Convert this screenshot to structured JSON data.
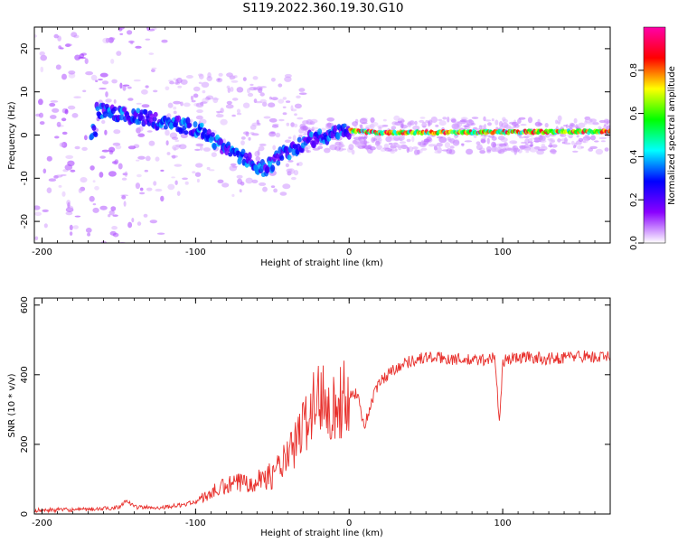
{
  "title": "S119.2022.360.19.30.G10",
  "colors": {
    "trace": "#e8302c",
    "frame": "#000000"
  },
  "chart_data": [
    {
      "type": "heatmap",
      "xlabel": "Height of straight line (km)",
      "ylabel": "Frequency (Hz)",
      "xlim": [
        -205,
        170
      ],
      "ylim": [
        -25,
        25
      ],
      "x_ticks": [
        -200,
        -100,
        0,
        100
      ],
      "y_ticks": [
        -20,
        -10,
        0,
        10,
        20
      ],
      "colorbar": {
        "label": "Normalized spectral amplitude",
        "range": [
          0,
          1
        ],
        "ticks": [
          0.0,
          0.2,
          0.4,
          0.6,
          0.8
        ],
        "colormap": [
          "#ffffff",
          "#8a00ff",
          "#0000ff",
          "#00ffff",
          "#00ff00",
          "#ffff00",
          "#ff0000",
          "#ff00aa"
        ]
      },
      "ridge": {
        "x": [
          -165,
          -150,
          -135,
          -120,
          -105,
          -95,
          -85,
          -75,
          -65,
          -55,
          -45,
          -35,
          -25,
          -15,
          -5,
          0,
          20,
          60,
          100,
          140,
          170
        ],
        "y": [
          6,
          5,
          4,
          3,
          2,
          1,
          -2,
          -4,
          -6,
          -8,
          -5,
          -3,
          -1,
          0,
          1,
          1,
          0.5,
          0.6,
          0.7,
          0.8,
          0.8
        ]
      }
    },
    {
      "type": "line",
      "xlabel": "Height of straight line (km)",
      "ylabel": "SNR (10 * v/v)",
      "xlim": [
        -205,
        170
      ],
      "ylim": [
        0,
        620
      ],
      "x_ticks": [
        -200,
        -100,
        0,
        100
      ],
      "y_ticks": [
        0,
        200,
        400,
        600
      ],
      "series": [
        {
          "x": [
            -205,
            -190,
            -175,
            -160,
            -150,
            -145,
            -140,
            -125,
            -110,
            -100,
            -90,
            -80,
            -70,
            -60,
            -50,
            -45,
            -40,
            -35,
            -30,
            -25,
            -20,
            -15,
            -10,
            -5,
            0,
            5,
            10,
            15,
            20,
            25,
            30,
            40,
            50,
            60,
            70,
            80,
            90,
            95,
            98,
            100,
            105,
            110,
            120,
            130,
            140,
            150,
            160,
            170
          ],
          "y": [
            10,
            12,
            12,
            15,
            20,
            40,
            20,
            18,
            25,
            35,
            60,
            80,
            90,
            100,
            110,
            140,
            160,
            200,
            250,
            300,
            330,
            350,
            300,
            320,
            340,
            350,
            250,
            330,
            380,
            400,
            420,
            440,
            450,
            448,
            445,
            440,
            445,
            450,
            250,
            440,
            445,
            450,
            450,
            445,
            450,
            455,
            450,
            450
          ]
        }
      ]
    }
  ]
}
